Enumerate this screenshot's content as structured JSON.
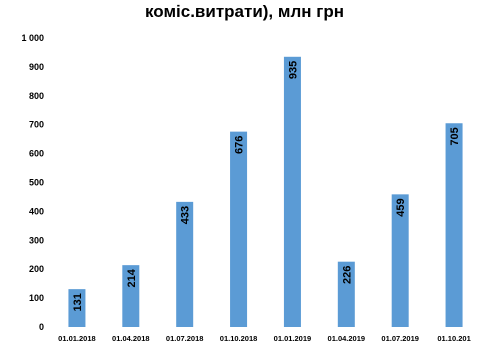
{
  "chart_data": {
    "type": "bar",
    "title": "коміс.витрати), млн грн",
    "categories": [
      "01.01.2018",
      "01.04.2018",
      "01.07.2018",
      "01.10.2018",
      "01.01.2019",
      "01.04.2019",
      "01.07.2019",
      "01.10.201"
    ],
    "values": [
      131,
      214,
      433,
      676,
      935,
      226,
      459,
      705
    ],
    "ylim": [
      0,
      1000
    ],
    "yticks": [
      "0",
      "100",
      "200",
      "300",
      "400",
      "500",
      "600",
      "700",
      "800",
      "900",
      "1 000"
    ],
    "grid": false,
    "legend": "none",
    "bar_color": "#5B9BD5",
    "data_labels": [
      "131",
      "214",
      "433",
      "676",
      "935",
      "226",
      "459",
      "705"
    ]
  }
}
